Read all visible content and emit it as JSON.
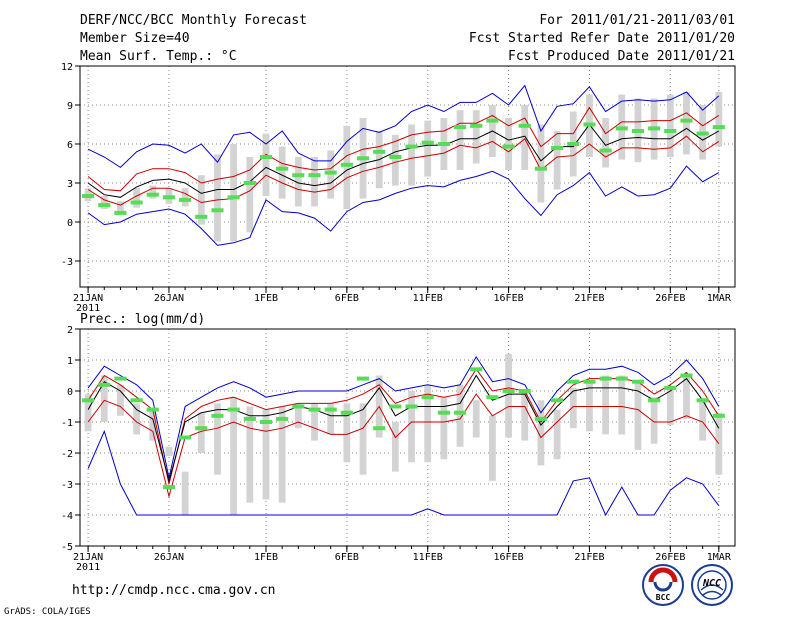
{
  "header": {
    "title": "DERF/NCC/BCC Monthly Forecast",
    "member_size": "Member Size=40",
    "variable": "Mean Surf. Temp.: °C",
    "period": "For 2011/01/21-2011/03/01",
    "start_date": "Fcst Started Refer Date 2011/01/20",
    "produced_date": "Fcst Produced Date 2011/01/21"
  },
  "footer": {
    "url": "http://cmdp.ncc.cma.gov.cn",
    "credit": "GrADS: COLA/IGES",
    "logo_left": "BCC",
    "logo_right": "NCC"
  },
  "colors": {
    "bars": "#d3d3d3",
    "median": "#000000",
    "quartile": "#cc0000",
    "extreme": "#0000cc",
    "observed": "#55dd55",
    "grid": "#888888"
  },
  "chart_data": [
    {
      "type": "line",
      "id": "temp",
      "title": "Mean Surf. Temp.: °C",
      "ylim": [
        -5,
        12
      ],
      "yticks": [
        -3,
        0,
        3,
        6,
        9,
        12
      ],
      "x_ticks": [
        {
          "day": 1,
          "label": "21JAN"
        },
        {
          "day": 6,
          "label": "26JAN"
        },
        {
          "day": 12,
          "label": "1FEB"
        },
        {
          "day": 17,
          "label": "6FEB"
        },
        {
          "day": 22,
          "label": "11FEB"
        },
        {
          "day": 27,
          "label": "16FEB"
        },
        {
          "day": 32,
          "label": "21FEB"
        },
        {
          "day": 37,
          "label": "26FEB"
        },
        {
          "day": 40,
          "label": "1MAR"
        }
      ],
      "year_label": "2011",
      "days": 40,
      "box_low": [
        1.6,
        1.0,
        0.6,
        1.1,
        1.8,
        1.4,
        1.2,
        -0.2,
        -1.5,
        -1.5,
        -0.8,
        2.0,
        1.8,
        1.2,
        1.2,
        1.8,
        1.0,
        1.8,
        2.6,
        2.8,
        2.8,
        3.5,
        4.0,
        4.0,
        4.5,
        5.0,
        4.0,
        4.0,
        1.5,
        2.5,
        3.5,
        5.0,
        4.2,
        4.8,
        4.6,
        4.8,
        5.0,
        5.2,
        4.8,
        5.8
      ],
      "box_high": [
        2.6,
        2.0,
        1.6,
        2.6,
        2.8,
        2.6,
        2.6,
        3.6,
        5.2,
        6.0,
        5.0,
        6.8,
        5.8,
        5.0,
        5.0,
        5.5,
        7.4,
        8.0,
        7.0,
        6.7,
        7.5,
        7.8,
        8.0,
        8.6,
        8.6,
        9.0,
        8.0,
        9.0,
        7.5,
        7.0,
        8.5,
        9.8,
        8.0,
        9.8,
        9.5,
        9.5,
        9.8,
        10.0,
        9.0,
        10.0
      ],
      "observed": [
        2.0,
        1.3,
        0.7,
        1.5,
        2.1,
        1.9,
        1.7,
        0.4,
        0.9,
        1.9,
        3.0,
        5.0,
        4.1,
        3.6,
        3.6,
        3.8,
        4.4,
        4.9,
        5.4,
        5.0,
        5.8,
        6.1,
        6.0,
        7.3,
        7.4,
        7.8,
        5.8,
        7.4,
        4.1,
        5.7,
        6.0,
        7.5,
        5.5,
        7.2,
        7.0,
        7.2,
        7.0,
        7.8,
        6.8,
        7.3
      ],
      "series": [
        {
          "name": "max",
          "color": "#0000cc",
          "values": [
            5.6,
            5.0,
            4.2,
            5.4,
            6.0,
            5.9,
            5.3,
            6.0,
            4.6,
            6.7,
            6.9,
            6.0,
            7.0,
            5.3,
            4.7,
            4.7,
            6.2,
            7.2,
            6.9,
            7.4,
            8.5,
            9.0,
            8.5,
            9.2,
            9.2,
            9.9,
            9.0,
            10.5,
            7.0,
            8.9,
            9.1,
            10.4,
            8.5,
            9.3,
            9.4,
            9.3,
            9.4,
            10.0,
            8.6,
            9.7
          ]
        },
        {
          "name": "upper",
          "color": "#cc0000",
          "values": [
            3.5,
            2.5,
            2.4,
            3.7,
            4.1,
            4.1,
            3.8,
            3.0,
            3.3,
            3.5,
            4.0,
            5.2,
            4.5,
            4.2,
            4.0,
            4.1,
            5.1,
            5.6,
            5.8,
            6.2,
            6.7,
            6.9,
            7.0,
            7.6,
            7.6,
            8.2,
            7.4,
            8.0,
            5.8,
            6.8,
            6.8,
            8.8,
            6.8,
            7.7,
            7.7,
            7.8,
            7.8,
            8.4,
            7.4,
            8.2
          ]
        },
        {
          "name": "median",
          "color": "#000000",
          "values": [
            3.0,
            2.1,
            1.9,
            2.7,
            3.2,
            3.3,
            3.0,
            2.2,
            2.5,
            2.5,
            3.1,
            4.2,
            3.6,
            3.0,
            2.8,
            3.0,
            4.0,
            4.5,
            4.8,
            5.4,
            5.7,
            5.9,
            5.9,
            6.4,
            6.4,
            7.0,
            6.3,
            6.6,
            4.7,
            5.8,
            5.8,
            7.5,
            5.9,
            6.4,
            6.5,
            6.4,
            6.4,
            7.2,
            6.3,
            7.0
          ]
        },
        {
          "name": "lower",
          "color": "#cc0000",
          "values": [
            2.5,
            1.7,
            1.3,
            2.0,
            2.6,
            2.6,
            2.2,
            1.5,
            1.7,
            1.8,
            2.4,
            3.6,
            3.0,
            2.5,
            2.3,
            2.5,
            3.4,
            3.9,
            4.2,
            4.6,
            4.9,
            5.1,
            5.3,
            5.9,
            5.7,
            6.2,
            5.4,
            6.4,
            4.0,
            5.0,
            5.1,
            6.0,
            5.0,
            5.7,
            5.7,
            5.6,
            5.7,
            6.6,
            5.4,
            6.2
          ]
        },
        {
          "name": "min",
          "color": "#0000cc",
          "values": [
            0.7,
            -0.2,
            0.0,
            0.6,
            0.8,
            1.0,
            0.6,
            -0.5,
            -1.8,
            -1.6,
            -1.2,
            1.7,
            0.8,
            0.7,
            0.3,
            -0.7,
            0.8,
            1.5,
            1.7,
            2.2,
            2.6,
            2.8,
            2.7,
            3.2,
            3.5,
            3.9,
            3.3,
            1.8,
            0.5,
            2.1,
            2.8,
            3.8,
            2.0,
            2.7,
            2.0,
            2.1,
            2.6,
            4.3,
            3.1,
            3.8
          ]
        }
      ]
    },
    {
      "type": "line",
      "id": "prec",
      "title": "Prec.: log(mm/d)",
      "ylim": [
        -5,
        2
      ],
      "yticks": [
        -5,
        -4,
        -3,
        -2,
        -1,
        0,
        1,
        2
      ],
      "x_ticks": [
        {
          "day": 1,
          "label": "21JAN"
        },
        {
          "day": 6,
          "label": "26JAN"
        },
        {
          "day": 12,
          "label": "1FEB"
        },
        {
          "day": 17,
          "label": "6FEB"
        },
        {
          "day": 22,
          "label": "11FEB"
        },
        {
          "day": 27,
          "label": "16FEB"
        },
        {
          "day": 32,
          "label": "21FEB"
        },
        {
          "day": 37,
          "label": "26FEB"
        },
        {
          "day": 40,
          "label": "1MAR"
        }
      ],
      "year_label": "2011",
      "days": 40,
      "box_low": [
        -1.3,
        -1.0,
        -0.8,
        -1.4,
        -1.6,
        -2.1,
        -4.0,
        -2.0,
        -2.7,
        -4.0,
        -3.6,
        -3.5,
        -3.6,
        -1.2,
        -1.6,
        -1.4,
        -2.3,
        -2.7,
        -1.5,
        -2.6,
        -2.3,
        -2.3,
        -2.2,
        -1.8,
        -1.5,
        -2.9,
        -1.5,
        -1.6,
        -2.4,
        -2.2,
        -1.2,
        -1.3,
        -1.4,
        -1.4,
        -1.9,
        -1.7,
        -1.1,
        -0.9,
        -1.6,
        -2.7
      ],
      "box_high": [
        -0.1,
        0.5,
        0.2,
        -0.4,
        -0.6,
        -1.8,
        -2.6,
        -0.7,
        -0.4,
        -0.2,
        -0.5,
        -0.6,
        -0.5,
        -0.4,
        -0.4,
        -0.4,
        -0.4,
        -0.4,
        0.5,
        -1.0,
        0.0,
        0.2,
        -0.2,
        0.2,
        -0.3,
        -0.8,
        1.2,
        0.0,
        -0.3,
        -0.6,
        0.1,
        0.3,
        0.5,
        0.5,
        0.3,
        -0.2,
        0.1,
        0.5,
        -0.3,
        -0.7
      ],
      "observed": [
        -0.3,
        0.2,
        0.4,
        -0.3,
        -0.6,
        -3.1,
        -1.5,
        -1.2,
        -0.8,
        -0.6,
        -0.9,
        -1.0,
        -0.9,
        -0.5,
        -0.6,
        -0.6,
        -0.7,
        0.4,
        -1.2,
        -0.5,
        -0.5,
        -0.2,
        -0.7,
        -0.7,
        0.7,
        -0.2,
        0.0,
        0.0,
        -0.9,
        -0.3,
        0.3,
        0.3,
        0.4,
        0.4,
        0.3,
        -0.3,
        0.1,
        0.5,
        -0.3,
        -0.8
      ],
      "series": [
        {
          "name": "max",
          "color": "#0000cc",
          "values": [
            0.1,
            0.8,
            0.5,
            0.2,
            -0.3,
            -2.8,
            -0.5,
            -0.2,
            0.1,
            0.3,
            0.1,
            -0.2,
            -0.1,
            0.0,
            0.0,
            0.0,
            0.0,
            0.2,
            0.4,
            0.0,
            0.1,
            0.2,
            0.1,
            0.2,
            1.1,
            0.3,
            0.4,
            0.2,
            -0.7,
            0.0,
            0.5,
            0.7,
            0.7,
            0.8,
            0.6,
            0.2,
            0.5,
            1.0,
            0.4,
            -0.5
          ]
        },
        {
          "name": "upper",
          "color": "#cc0000",
          "values": [
            -0.3,
            0.5,
            0.2,
            -0.2,
            -0.6,
            -3.0,
            -0.9,
            -0.5,
            -0.3,
            -0.2,
            -0.4,
            -0.6,
            -0.5,
            -0.4,
            -0.4,
            -0.4,
            -0.3,
            -0.1,
            0.2,
            -0.4,
            -0.2,
            -0.1,
            -0.2,
            -0.1,
            0.7,
            0.0,
            0.1,
            0.0,
            -1.0,
            -0.3,
            0.2,
            0.4,
            0.4,
            0.4,
            0.3,
            -0.1,
            0.2,
            0.6,
            0.0,
            -0.8
          ]
        },
        {
          "name": "median",
          "color": "#000000",
          "values": [
            -0.6,
            0.3,
            0.0,
            -0.6,
            -0.9,
            -2.9,
            -1.0,
            -0.7,
            -0.6,
            -0.6,
            -0.8,
            -0.8,
            -0.7,
            -0.5,
            -0.6,
            -0.8,
            -0.8,
            -0.6,
            0.1,
            -0.8,
            -0.5,
            -0.5,
            -0.5,
            -0.4,
            0.5,
            -0.3,
            -0.1,
            -0.1,
            -1.1,
            -0.5,
            0.0,
            0.1,
            0.1,
            0.1,
            0.0,
            -0.3,
            0.0,
            0.4,
            -0.3,
            -1.2
          ]
        },
        {
          "name": "lower",
          "color": "#cc0000",
          "values": [
            -1.0,
            -0.3,
            -0.5,
            -1.0,
            -1.3,
            -3.4,
            -1.5,
            -1.3,
            -1.2,
            -1.0,
            -1.2,
            -1.3,
            -1.2,
            -1.0,
            -1.2,
            -1.4,
            -1.4,
            -1.2,
            -0.5,
            -1.5,
            -1.0,
            -1.0,
            -1.0,
            -0.9,
            -0.1,
            -0.8,
            -0.5,
            -0.5,
            -1.5,
            -1.0,
            -0.5,
            -0.5,
            -0.5,
            -0.5,
            -0.6,
            -1.0,
            -1.0,
            -0.8,
            -1.0,
            -1.7
          ]
        },
        {
          "name": "min",
          "color": "#0000cc",
          "values": [
            -2.5,
            -1.3,
            -3.0,
            -4.0,
            -4.0,
            -4.0,
            -4.0,
            -4.0,
            -4.0,
            -4.0,
            -4.0,
            -4.0,
            -4.0,
            -4.0,
            -4.0,
            -4.0,
            -4.0,
            -4.0,
            -4.0,
            -4.0,
            -4.0,
            -3.8,
            -4.0,
            -4.0,
            -4.0,
            -4.0,
            -4.0,
            -4.0,
            -4.0,
            -4.0,
            -2.9,
            -2.8,
            -4.0,
            -3.1,
            -4.0,
            -4.0,
            -3.2,
            -2.8,
            -3.0,
            -3.7
          ]
        }
      ]
    }
  ]
}
